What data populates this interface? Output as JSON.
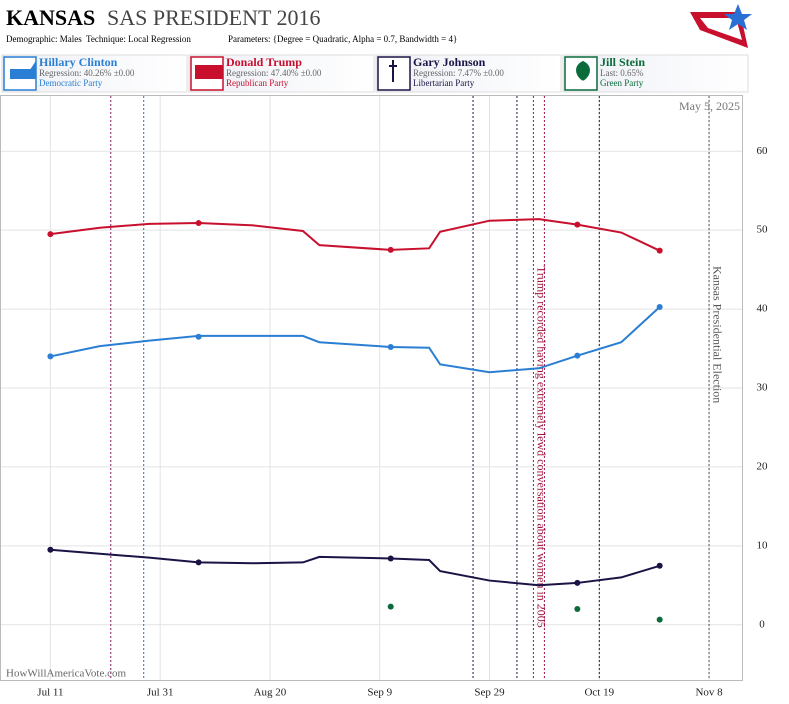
{
  "header": {
    "title_bold": "KANSAS",
    "title": "SAS PRESIDENT 2016",
    "demographic": "Demographic: Males",
    "technique": "Technique: Local Regression",
    "parameters": "Parameters: {Degree = Quadratic, Alpha = 0.7, Bandwidth = 4}"
  },
  "legend": [
    {
      "name": "Hillary Clinton",
      "stat": "Regression: 40.26% ±0.00",
      "party": "Democratic Party",
      "color": "#2a7fd4"
    },
    {
      "name": "Donald Trump",
      "stat": "Regression: 47.40% ±0.00",
      "party": "Republican Party",
      "color": "#c8102e"
    },
    {
      "name": "Gary Johnson",
      "stat": "Regression: 7.47% ±0.00",
      "party": "Libertarian Party",
      "color": "#1a1446"
    },
    {
      "name": "Jill Stein",
      "stat": "Last: 0.65%",
      "party": "Green Party",
      "color": "#0a6b3b"
    }
  ],
  "chart_data": {
    "type": "line",
    "date": "May 5, 2025",
    "watermark": "HowWillAmericaVote.com",
    "x": [
      "2016-07-11",
      "2016-08-07",
      "2016-09-11",
      "2016-10-15",
      "2016-10-30"
    ],
    "trend_x": [
      "2016-07-11",
      "2016-07-20",
      "2016-07-29",
      "2016-08-07",
      "2016-08-17",
      "2016-08-26",
      "2016-08-29",
      "2016-09-11",
      "2016-09-18",
      "2016-09-20",
      "2016-09-29",
      "2016-10-08",
      "2016-10-15",
      "2016-10-23",
      "2016-10-30"
    ],
    "series": [
      {
        "name": "Hillary Clinton",
        "color": "#2a7fd4",
        "values": [
          34,
          36.5,
          35.2,
          34.1,
          40.26
        ],
        "trend": [
          34,
          35.3,
          36.0,
          36.6,
          36.6,
          36.6,
          35.8,
          35.2,
          35.1,
          33.0,
          32.0,
          32.5,
          34.1,
          35.8,
          40.26
        ]
      },
      {
        "name": "Donald Trump",
        "color": "#c8102e",
        "values": [
          49.5,
          50.9,
          47.5,
          50.7,
          47.4
        ],
        "trend": [
          49.5,
          50.3,
          50.8,
          50.9,
          50.6,
          49.9,
          48.1,
          47.5,
          47.7,
          49.8,
          51.2,
          51.4,
          50.7,
          49.7,
          47.4
        ]
      },
      {
        "name": "Gary Johnson",
        "color": "#1a1446",
        "values": [
          9.5,
          7.9,
          8.4,
          5.3,
          7.47
        ],
        "trend": [
          9.5,
          9.0,
          8.5,
          7.9,
          7.8,
          7.9,
          8.6,
          8.4,
          8.2,
          6.8,
          5.6,
          5.0,
          5.3,
          6.0,
          7.47
        ]
      },
      {
        "name": "Jill Stein",
        "color": "#0a6b3b",
        "values": [
          null,
          null,
          2.3,
          2.0,
          0.65
        ],
        "trend": null
      }
    ],
    "events": [
      {
        "date": "2016-07-22",
        "color": "#8b1a6b"
      },
      {
        "date": "2016-07-28",
        "color": "#2a6fb4"
      },
      {
        "date": "2016-09-26",
        "color": "#1a1446"
      },
      {
        "date": "2016-10-04",
        "color": "#1a1446"
      },
      {
        "date": "2016-10-07",
        "color": "#a0103a",
        "label": "Trump recorded having extremely lewd conversation about women in 2005"
      },
      {
        "date": "2016-10-09",
        "color": "#a0103a"
      },
      {
        "date": "2016-10-19",
        "color": "#1a1446"
      },
      {
        "date": "2016-11-08",
        "color": "#555",
        "label": "Kansas Presidential Election"
      }
    ],
    "xlim": [
      "2016-07-02",
      "2016-11-14"
    ],
    "xticks": [
      {
        "value": "2016-07-11",
        "label": "Jul 11"
      },
      {
        "value": "2016-07-31",
        "label": "Jul 31"
      },
      {
        "value": "2016-08-20",
        "label": "Aug 20"
      },
      {
        "value": "2016-09-09",
        "label": "Sep 9"
      },
      {
        "value": "2016-09-29",
        "label": "Sep 29"
      },
      {
        "value": "2016-10-19",
        "label": "Oct 19"
      },
      {
        "value": "2016-11-08",
        "label": "Nov 8"
      }
    ],
    "ylim": [
      -7,
      67
    ],
    "yticks": [
      0,
      10,
      20,
      30,
      40,
      50,
      60
    ],
    "grid": true
  }
}
